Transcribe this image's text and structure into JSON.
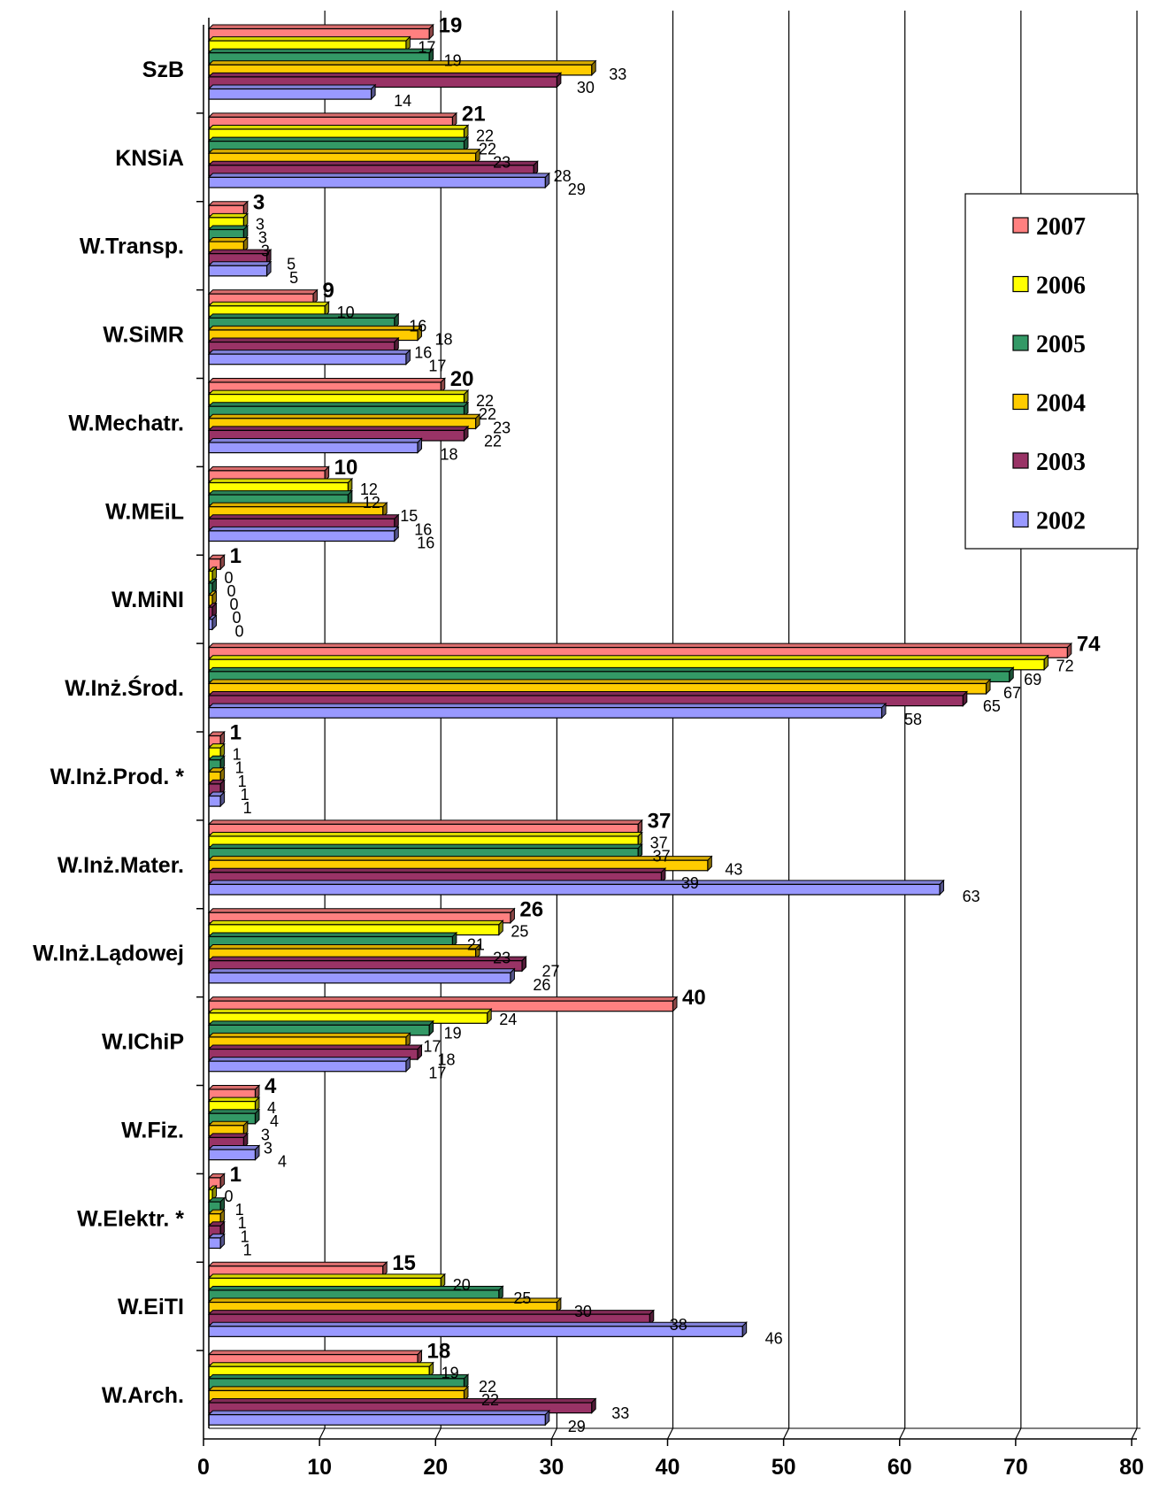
{
  "chart_data": {
    "type": "bar",
    "orientation": "horizontal",
    "categories": [
      "SzB",
      "KNSiA",
      "W.Transp.",
      "W.SiMR",
      "W.Mechatr.",
      "W.MEiL",
      "W.MiNI",
      "W.Inż.Środ.",
      "W.Inż.Prod.  *",
      "W.Inż.Mater.",
      "W.Inż.Lądowej",
      "W.IChiP",
      "W.Fiz.",
      "W.Elektr.  *",
      "W.EiTI",
      "W.Arch."
    ],
    "series": [
      {
        "name": "2007",
        "color": "#ff8080",
        "values": [
          19,
          21,
          3,
          9,
          20,
          10,
          1,
          74,
          1,
          37,
          26,
          40,
          4,
          1,
          15,
          18
        ]
      },
      {
        "name": "2006",
        "color": "#ffff00",
        "values": [
          17,
          22,
          3,
          10,
          22,
          12,
          0,
          72,
          1,
          37,
          25,
          24,
          4,
          0,
          20,
          19
        ]
      },
      {
        "name": "2005",
        "color": "#339966",
        "values": [
          19,
          22,
          3,
          16,
          22,
          12,
          0,
          69,
          1,
          37,
          21,
          19,
          4,
          1,
          25,
          22
        ]
      },
      {
        "name": "2004",
        "color": "#ffcc00",
        "values": [
          33,
          23,
          3,
          18,
          23,
          15,
          0,
          67,
          1,
          43,
          23,
          17,
          3,
          1,
          30,
          22
        ]
      },
      {
        "name": "2003",
        "color": "#993366",
        "values": [
          30,
          28,
          5,
          16,
          22,
          16,
          0,
          65,
          1,
          39,
          27,
          18,
          3,
          1,
          38,
          33
        ]
      },
      {
        "name": "2002",
        "color": "#9999ff",
        "values": [
          14,
          29,
          5,
          17,
          18,
          16,
          0,
          58,
          1,
          63,
          26,
          17,
          4,
          1,
          46,
          29
        ]
      }
    ],
    "xlim": [
      0,
      80
    ],
    "x_ticks": [
      "0",
      "10",
      "20",
      "30",
      "40",
      "50",
      "60",
      "70",
      "80"
    ],
    "grid": true,
    "legend_placement": "right"
  }
}
